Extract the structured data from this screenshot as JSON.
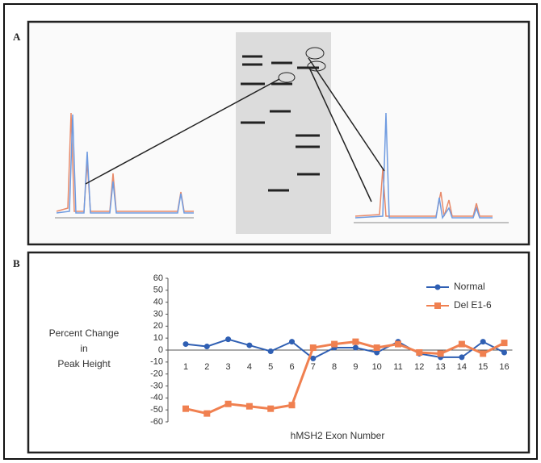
{
  "panels": {
    "a_label": "A",
    "b_label": "B"
  },
  "chart_data": {
    "type": "line",
    "ylabel": [
      "Percent Change",
      "in",
      "Peak Height"
    ],
    "xlabel": "hMSH2 Exon Number",
    "categories": [
      "1",
      "2",
      "3",
      "4",
      "5",
      "6",
      "7",
      "8",
      "9",
      "10",
      "11",
      "12",
      "13",
      "14",
      "15",
      "16"
    ],
    "ylim": [
      -60,
      60
    ],
    "yticks": [
      60,
      50,
      40,
      30,
      20,
      10,
      0,
      -10,
      -20,
      -30,
      -40,
      -50,
      -60
    ],
    "legend": "top-right",
    "series": [
      {
        "name": "Normal",
        "color": "#2f5fb3",
        "marker": "circle",
        "values": [
          5,
          3,
          9,
          4,
          -1,
          7,
          -7,
          2,
          2,
          -2,
          7,
          -3,
          -6,
          -6,
          7,
          -2
        ]
      },
      {
        "name": "Del E1-6",
        "color": "#f08050",
        "marker": "square",
        "values": [
          -49,
          -53,
          -45,
          -47,
          -49,
          -46,
          2,
          5,
          7,
          2,
          5,
          -2,
          -3,
          5,
          -3,
          6
        ]
      }
    ]
  }
}
